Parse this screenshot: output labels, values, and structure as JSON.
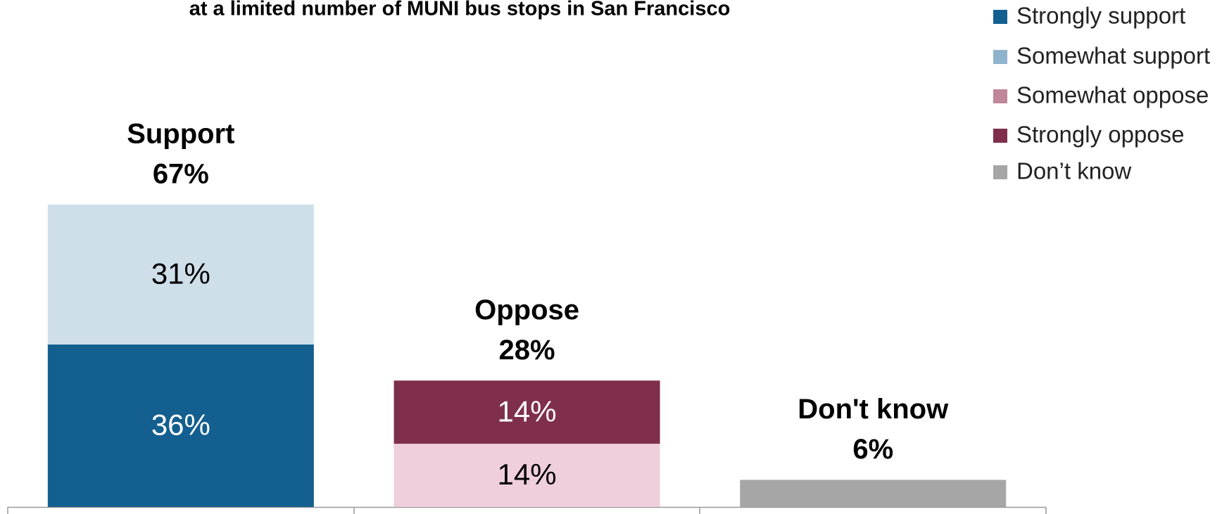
{
  "chart_data": {
    "type": "stacked_bar",
    "title": "at a limited number of MUNI bus stops in San Francisco",
    "categories": [
      "Support",
      "Oppose",
      "Don't know"
    ],
    "totals": [
      67,
      28,
      6
    ],
    "total_labels": [
      "67%",
      "28%",
      "6%"
    ],
    "series": [
      {
        "name": "Strongly support",
        "color": "#135f8f",
        "legend_color": "#135f8f",
        "label_color": "#ffffff",
        "values": [
          36,
          null,
          null
        ],
        "value_labels": [
          "36%",
          null,
          null
        ]
      },
      {
        "name": "Somewhat support",
        "color": "#cfdfea",
        "legend_color": "#8fb3cc",
        "label_color": "#000000",
        "values": [
          31,
          null,
          null
        ],
        "value_labels": [
          "31%",
          null,
          null
        ]
      },
      {
        "name": "Somewhat oppose",
        "color": "#efcfdb",
        "legend_color": "#c0869a",
        "label_color": "#000000",
        "values": [
          null,
          14,
          null
        ],
        "value_labels": [
          null,
          "14%",
          null
        ]
      },
      {
        "name": "Strongly oppose",
        "color": "#7f2f4c",
        "legend_color": "#7f2f4c",
        "label_color": "#ffffff",
        "values": [
          null,
          14,
          null
        ],
        "value_labels": [
          null,
          "14%",
          null
        ]
      },
      {
        "name": "Don’t know",
        "color": "#a6a6a6",
        "legend_color": "#a6a6a6",
        "label_color": "#000000",
        "values": [
          null,
          null,
          6
        ],
        "value_labels": [
          null,
          null,
          null
        ]
      }
    ],
    "legend": "top-right"
  }
}
